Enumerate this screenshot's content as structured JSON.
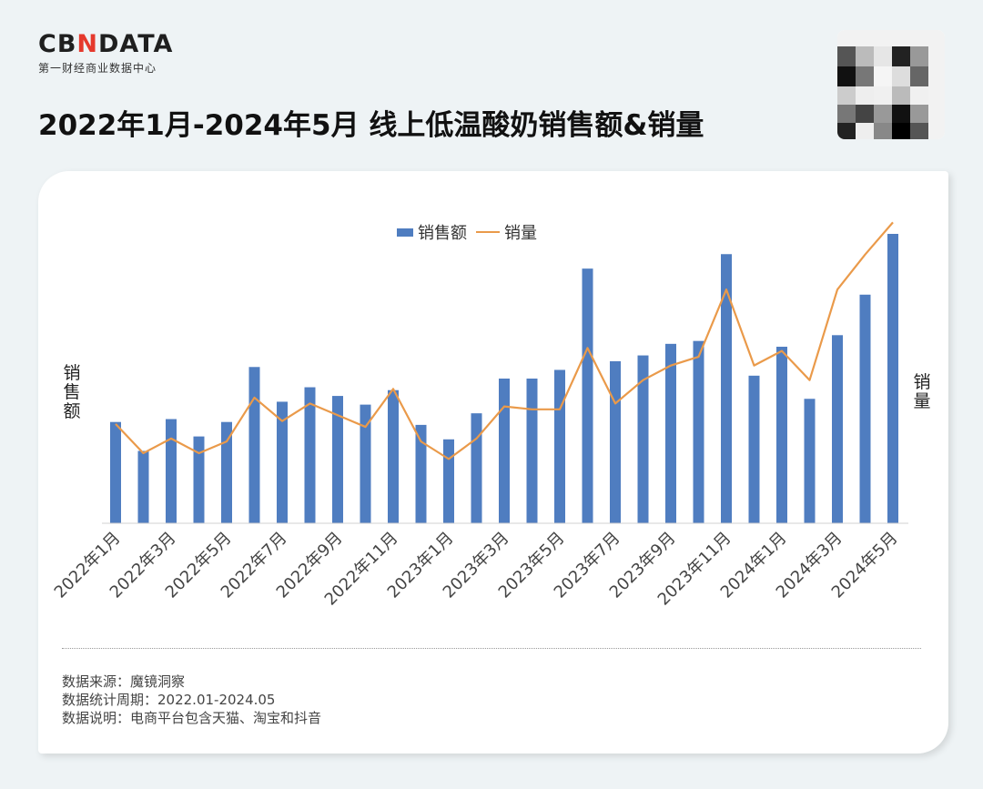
{
  "brand": {
    "logo_prefix": "CB",
    "logo_accent": "N",
    "logo_suffix": "DATA",
    "subtitle": "第一财经商业数据中心",
    "accent_color": "#e5392d"
  },
  "header": {
    "title": "2022年1月-2024年5月 线上低温酸奶销售额&销量"
  },
  "legend": {
    "bar_label": "销售额",
    "line_label": "销量"
  },
  "axes": {
    "left_label": "销售额",
    "right_label": "销量"
  },
  "chart_data": {
    "type": "bar+line",
    "title": "2022年1月-2024年5月 线上低温酸奶销售额&销量",
    "xlabel": "",
    "ylabel": "销售额",
    "y2label": "销量",
    "grid": false,
    "legend_position": "top-center",
    "colors": {
      "bar": "#4f7dc0",
      "line": "#ea9a4a"
    },
    "value_note": "y-axes have no printed scale; values are approximate relative readings (arbitrary index units)",
    "ylim": [
      0,
      100
    ],
    "y2lim": [
      0,
      100
    ],
    "categories": [
      "2022年1月",
      "2022年2月",
      "2022年3月",
      "2022年4月",
      "2022年5月",
      "2022年6月",
      "2022年7月",
      "2022年8月",
      "2022年9月",
      "2022年10月",
      "2022年11月",
      "2022年12月",
      "2023年1月",
      "2023年2月",
      "2023年3月",
      "2023年4月",
      "2023年5月",
      "2023年6月",
      "2023年7月",
      "2023年8月",
      "2023年9月",
      "2023年10月",
      "2023年11月",
      "2023年12月",
      "2024年1月",
      "2024年2月",
      "2024年3月",
      "2024年4月",
      "2024年5月"
    ],
    "tick_labels": [
      "2022年1月",
      "2022年3月",
      "2022年5月",
      "2022年7月",
      "2022年9月",
      "2022年11月",
      "2023年1月",
      "2023年3月",
      "2023年5月",
      "2023年7月",
      "2023年9月",
      "2023年11月",
      "2024年1月",
      "2024年3月",
      "2024年5月"
    ],
    "series": [
      {
        "name": "销售额",
        "type": "bar",
        "axis": "left",
        "values": [
          35,
          25,
          36,
          30,
          35,
          54,
          42,
          47,
          44,
          41,
          46,
          34,
          29,
          38,
          50,
          50,
          53,
          88,
          56,
          58,
          62,
          63,
          93,
          51,
          61,
          43,
          65,
          79,
          100
        ]
      },
      {
        "name": "销量",
        "type": "line",
        "axis": "right",
        "values": [
          34,
          24,
          29,
          24,
          28,
          43,
          35,
          41,
          37,
          33,
          46,
          28,
          22,
          29,
          40,
          39,
          39,
          60,
          41,
          49,
          54,
          57,
          80,
          54,
          59,
          49,
          80,
          92,
          103
        ]
      }
    ]
  },
  "notes": {
    "source": "数据来源：魔镜洞察",
    "period": "数据统计周期：2022.01-2024.05",
    "description": "数据说明：电商平台包含天猫、淘宝和抖音"
  }
}
